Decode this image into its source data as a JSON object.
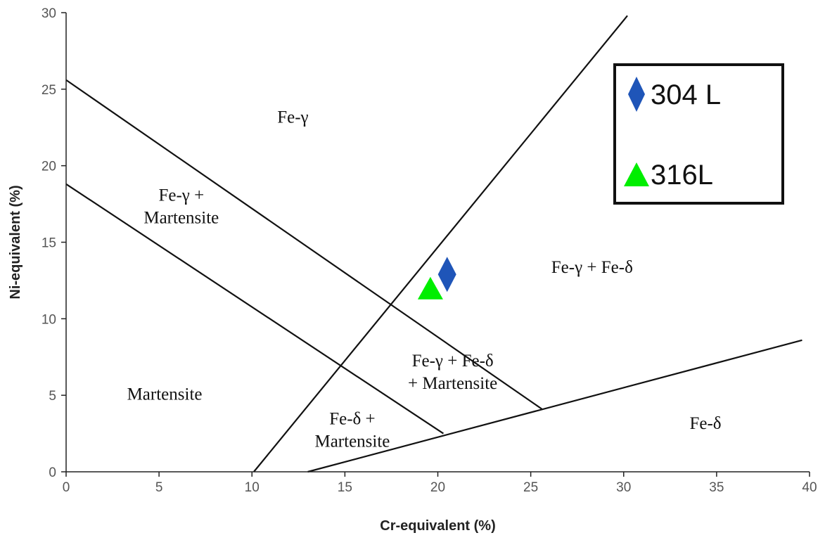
{
  "chart_data": {
    "type": "scatter",
    "title": "",
    "xlabel": "Cr-equivalent (%)",
    "ylabel": "Ni-equivalent (%)",
    "xlim": [
      0,
      40
    ],
    "ylim": [
      0,
      30
    ],
    "xticks": [
      0,
      5,
      10,
      15,
      20,
      25,
      30,
      35,
      40
    ],
    "yticks": [
      0,
      5,
      10,
      15,
      20,
      25,
      30
    ],
    "grid": false,
    "legend_position": "top-right",
    "boundary_lines": [
      {
        "points": [
          [
            0,
            25.6
          ],
          [
            25.6,
            4.1
          ]
        ]
      },
      {
        "points": [
          [
            0,
            18.8
          ],
          [
            20.3,
            2.5
          ]
        ]
      },
      {
        "points": [
          [
            10.1,
            0
          ],
          [
            30.2,
            29.8
          ]
        ]
      },
      {
        "points": [
          [
            13,
            0
          ],
          [
            39.6,
            8.6
          ]
        ]
      }
    ],
    "regions": [
      {
        "lines": [
          "Fe-γ"
        ],
        "x": 12.2,
        "y": 22.8
      },
      {
        "lines": [
          "Fe-γ +",
          "Martensite"
        ],
        "x": 6.2,
        "y": 17.7
      },
      {
        "lines": [
          "Fe-γ + Fe-δ"
        ],
        "x": 28.3,
        "y": 13.0
      },
      {
        "lines": [
          "Fe-γ + Fe-δ",
          "+ Martensite"
        ],
        "x": 20.8,
        "y": 6.9
      },
      {
        "lines": [
          "Martensite"
        ],
        "x": 5.3,
        "y": 4.7
      },
      {
        "lines": [
          "Fe-δ +",
          "Martensite"
        ],
        "x": 15.4,
        "y": 3.1
      },
      {
        "lines": [
          "Fe-δ"
        ],
        "x": 34.4,
        "y": 2.8
      }
    ],
    "series": [
      {
        "name": "304 L",
        "marker": "diamond",
        "color": "#1f55b8",
        "points": [
          [
            20.5,
            12.9
          ]
        ]
      },
      {
        "name": "316L",
        "marker": "triangle",
        "color": "#00ee00",
        "points": [
          [
            19.6,
            12.0
          ]
        ]
      }
    ]
  }
}
